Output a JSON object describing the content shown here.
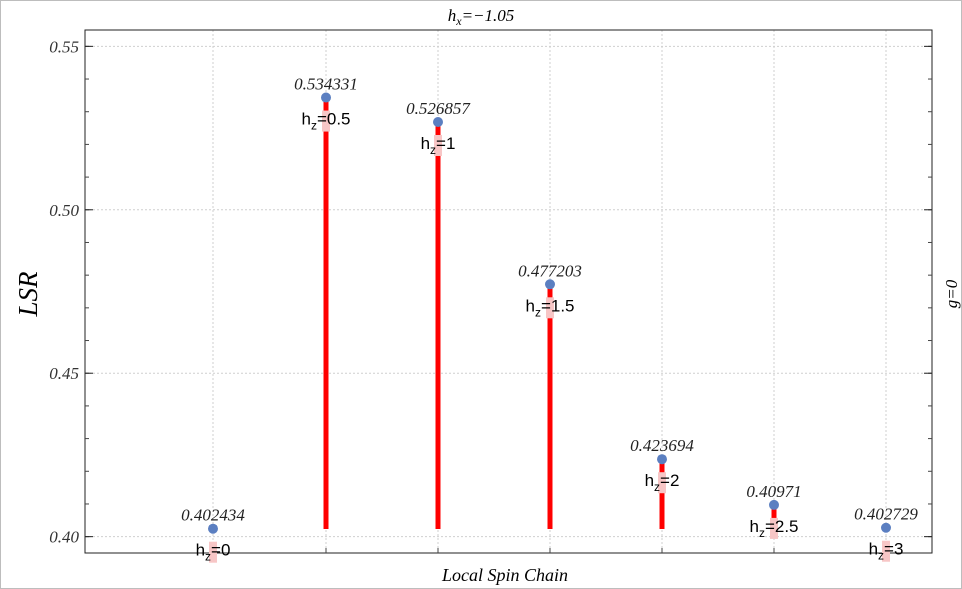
{
  "chart_data": {
    "type": "bar",
    "title": "hx=−1.05",
    "title_parts": {
      "base": "h",
      "sub": "x",
      "rest": "=−1.05"
    },
    "xlabel": "Local Spin Chain",
    "ylabel": "LSR",
    "right_label": "g=0",
    "ylim": [
      0.395,
      0.555
    ],
    "yticks": [
      0.4,
      0.45,
      0.5,
      0.55
    ],
    "ytick_labels": [
      "0.40",
      "0.45",
      "0.50",
      "0.55"
    ],
    "grid": true,
    "colors": {
      "stem": "#ff0000",
      "point": "#5b7fc1",
      "label_bg": "#f7c6c6"
    },
    "points": [
      {
        "label_base": "h",
        "label_sub": "z",
        "label_rest": "=0",
        "value": 0.402434,
        "value_label": "0.402434"
      },
      {
        "label_base": "h",
        "label_sub": "z",
        "label_rest": "=0.5",
        "value": 0.534331,
        "value_label": "0.534331"
      },
      {
        "label_base": "h",
        "label_sub": "z",
        "label_rest": "=1",
        "value": 0.526857,
        "value_label": "0.526857"
      },
      {
        "label_base": "h",
        "label_sub": "z",
        "label_rest": "=1.5",
        "value": 0.477203,
        "value_label": "0.477203"
      },
      {
        "label_base": "h",
        "label_sub": "z",
        "label_rest": "=2",
        "value": 0.423694,
        "value_label": "0.423694"
      },
      {
        "label_base": "h",
        "label_sub": "z",
        "label_rest": "=2.5",
        "value": 0.40971,
        "value_label": "0.40971"
      },
      {
        "label_base": "h",
        "label_sub": "z",
        "label_rest": "=3",
        "value": 0.402729,
        "value_label": "0.402729"
      }
    ]
  }
}
